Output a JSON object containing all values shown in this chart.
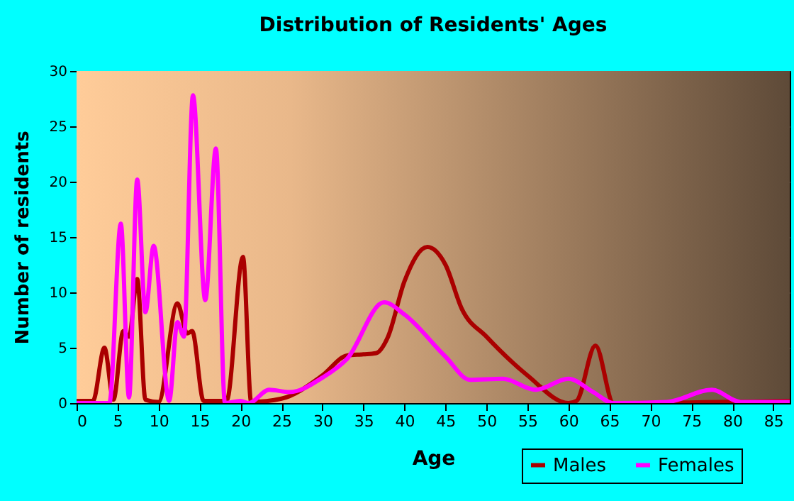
{
  "chart_data": {
    "type": "line",
    "title": "Distribution of Residents' Ages",
    "xlabel": "Age",
    "ylabel": "Number of residents",
    "xlim": [
      0,
      87
    ],
    "xticks": [
      0,
      5,
      10,
      15,
      20,
      25,
      30,
      35,
      40,
      45,
      50,
      55,
      60,
      65,
      70,
      75,
      80,
      85
    ],
    "ylim": [
      0,
      30
    ],
    "yticks": [
      0,
      5,
      10,
      15,
      20,
      25,
      30
    ],
    "grid": true,
    "legend": "bottom right",
    "marker": "none",
    "line_style": "solid",
    "series": [
      {
        "name": "Males",
        "color": "#aa0000",
        "x": [
          0,
          2,
          3.4,
          4.5,
          5.7,
          6.4,
          7.4,
          8.4,
          10,
          12.3,
          13.5,
          14.1,
          15.5,
          18.3,
          20.3,
          21.3,
          25,
          30,
          33,
          35,
          36.5,
          38,
          40,
          42.8,
          45,
          47,
          50,
          55,
          60,
          61,
          63.3,
          65.5,
          87
        ],
        "values": [
          0.2,
          0.2,
          5,
          0.3,
          6.5,
          6,
          11.2,
          0.3,
          0.1,
          9,
          6.3,
          6.5,
          0.2,
          0.2,
          13.2,
          0.1,
          0.4,
          2.5,
          4.3,
          4.4,
          4.5,
          6,
          11,
          14.1,
          12.5,
          8.5,
          6,
          2.5,
          0,
          0.2,
          5.2,
          0,
          0.2
        ]
      },
      {
        "name": "Females",
        "color": "#ff00ff",
        "x": [
          0,
          4,
          5.4,
          6.4,
          7.4,
          8.4,
          9.4,
          11.3,
          12.3,
          13.1,
          14.2,
          15.7,
          17,
          18.1,
          20,
          21,
          23.5,
          26,
          30,
          33,
          37.5,
          40,
          45,
          48,
          52,
          56,
          60,
          63,
          65.5,
          72,
          77.5,
          81,
          87
        ],
        "values": [
          0,
          0,
          16.2,
          0.5,
          20.2,
          8.2,
          14.2,
          0.2,
          7.3,
          6,
          27.8,
          9.3,
          23,
          0,
          0.2,
          0,
          1.2,
          1,
          2.3,
          4,
          9.1,
          8,
          4.2,
          2.1,
          2.2,
          1.2,
          2.2,
          1,
          0,
          0.1,
          1.2,
          0.1,
          0.1
        ]
      }
    ]
  }
}
